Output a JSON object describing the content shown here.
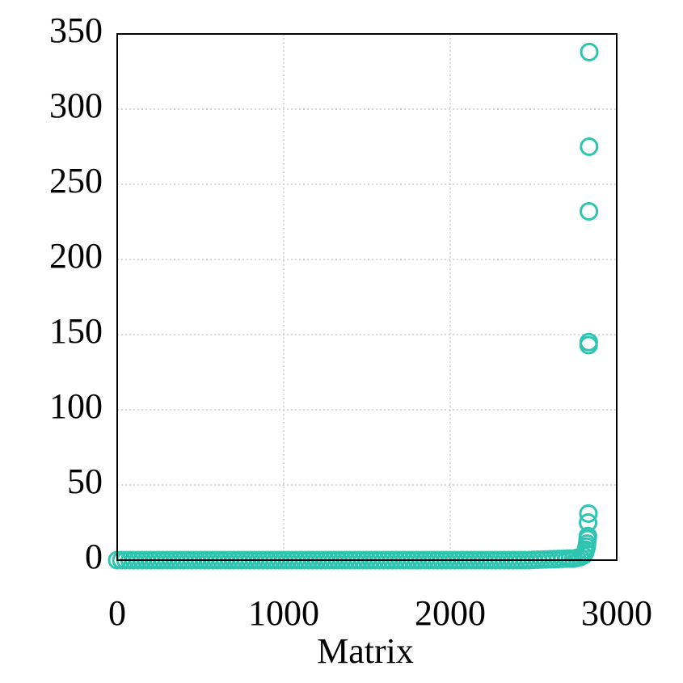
{
  "chart_data": {
    "type": "scatter",
    "xlabel": "Matrix",
    "x": [
      0,
      25,
      50,
      75,
      100,
      125,
      150,
      175,
      200,
      225,
      250,
      275,
      300,
      325,
      350,
      375,
      400,
      425,
      450,
      475,
      500,
      525,
      550,
      575,
      600,
      625,
      650,
      675,
      700,
      725,
      750,
      775,
      800,
      825,
      850,
      875,
      900,
      925,
      950,
      975,
      1000,
      1025,
      1050,
      1075,
      1100,
      1125,
      1150,
      1175,
      1200,
      1225,
      1250,
      1275,
      1300,
      1325,
      1350,
      1375,
      1400,
      1425,
      1450,
      1475,
      1500,
      1525,
      1550,
      1575,
      1600,
      1625,
      1650,
      1675,
      1700,
      1725,
      1750,
      1775,
      1800,
      1825,
      1850,
      1875,
      1900,
      1925,
      1950,
      1975,
      2000,
      2025,
      2050,
      2075,
      2100,
      2125,
      2150,
      2175,
      2200,
      2225,
      2250,
      2275,
      2300,
      2325,
      2350,
      2375,
      2400,
      2425,
      2450,
      2475,
      2500,
      2525,
      2550,
      2575,
      2600,
      2625,
      2650,
      2675,
      2700,
      2720,
      2740,
      2760,
      2780,
      2800,
      2810,
      2815,
      2820,
      2822,
      2825,
      2827,
      2828,
      2830,
      2831,
      2832,
      2833,
      2834,
      2835
    ],
    "series": [
      {
        "color": "#2ec4b0",
        "values": [
          0,
          0,
          0,
          0,
          0,
          0,
          0,
          0,
          0,
          0,
          0,
          0,
          0,
          0,
          0,
          0,
          0,
          0,
          0,
          0,
          0,
          0,
          0,
          0,
          0,
          0,
          0,
          0,
          0,
          0,
          0,
          0,
          0,
          0,
          0,
          0,
          0,
          0,
          0,
          0,
          0,
          0,
          0,
          0,
          0,
          0,
          0,
          0,
          0,
          0,
          0,
          0,
          0,
          0,
          0,
          0,
          0,
          0,
          0,
          0,
          0,
          0,
          0,
          0,
          0,
          0,
          0,
          0,
          0,
          0,
          0,
          0,
          0,
          0,
          0,
          0,
          0,
          0,
          0,
          0,
          0,
          0,
          0,
          0,
          0,
          0,
          0,
          0,
          0,
          0,
          0,
          0,
          0,
          0,
          0,
          0,
          0,
          0,
          0,
          0,
          0.2,
          0.3,
          0.4,
          0.5,
          0.6,
          0.7,
          0.8,
          0.9,
          1,
          1,
          1,
          1.5,
          2,
          3,
          5,
          7,
          9,
          11,
          14,
          16,
          25,
          31,
          143,
          145,
          232,
          275,
          338
        ]
      }
    ],
    "xlim": [
      0,
      3000
    ],
    "xticks": [
      0,
      1000,
      2000,
      3000
    ],
    "ylim": [
      0,
      350
    ],
    "yticks": [
      0,
      50,
      100,
      150,
      200,
      250,
      300,
      350
    ],
    "grid": true
  }
}
